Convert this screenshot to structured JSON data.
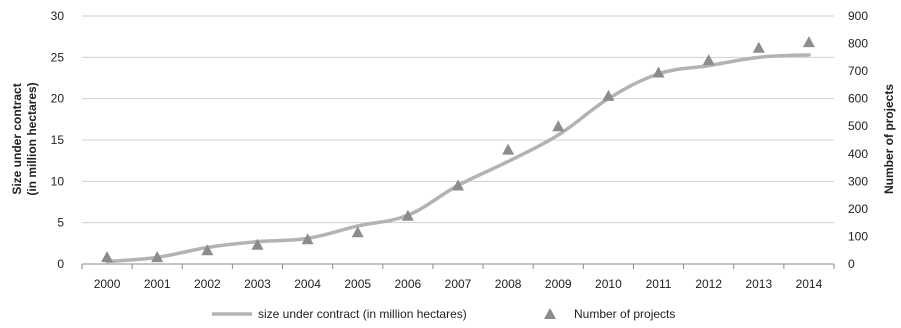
{
  "chart_data": {
    "type": "line",
    "x": [
      "2000",
      "2001",
      "2002",
      "2003",
      "2004",
      "2005",
      "2006",
      "2007",
      "2008",
      "2009",
      "2010",
      "2011",
      "2012",
      "2013",
      "2014"
    ],
    "series": [
      {
        "name": "size under contract (in million hectares)",
        "axis": "left",
        "style": "line",
        "color": "#b3b3b3",
        "values": [
          0.3,
          0.8,
          2.0,
          2.7,
          3.1,
          4.6,
          5.9,
          9.5,
          12.4,
          15.6,
          20.0,
          23.0,
          24.0,
          25.0,
          25.3
        ]
      },
      {
        "name": "Number of projects",
        "axis": "right",
        "style": "marker",
        "marker": "triangle",
        "color": "#8c8c8c",
        "values": [
          25,
          25,
          50,
          70,
          90,
          115,
          175,
          285,
          415,
          500,
          610,
          695,
          740,
          785,
          805
        ]
      }
    ],
    "yaxis_left": {
      "label_line1": "Size under contract",
      "label_line2": "(in million hectares)",
      "ylim": [
        0,
        30
      ],
      "ticks": [
        "0",
        "5",
        "10",
        "15",
        "20",
        "25",
        "30"
      ]
    },
    "yaxis_right": {
      "label": "Number of projects",
      "ylim": [
        0,
        900
      ],
      "ticks": [
        "0",
        "100",
        "200",
        "300",
        "400",
        "500",
        "600",
        "700",
        "800",
        "900"
      ]
    },
    "grid": true,
    "legend_position": "bottom"
  }
}
